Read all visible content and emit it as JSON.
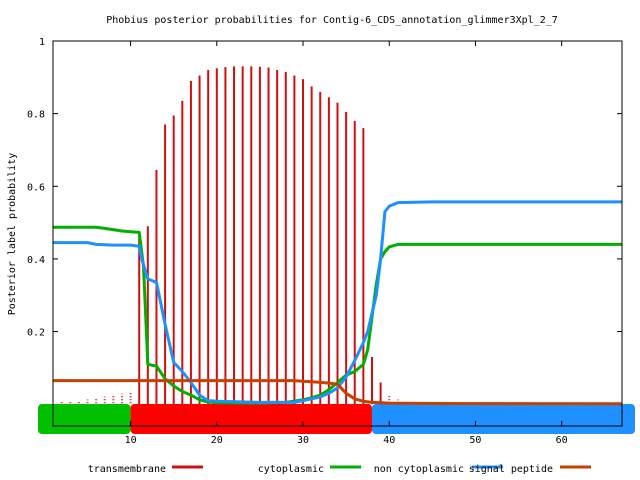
{
  "chart_data": {
    "type": "line",
    "title": "Phobius posterior probabilities for Contig-6_CDS_annotation_glimmer3Xpl_2_7",
    "xlabel": "",
    "ylabel": "Posterior label probability",
    "xlim": [
      1,
      67
    ],
    "ylim": [
      -0.06,
      1.0
    ],
    "x_ticks": [
      10,
      20,
      30,
      40,
      50,
      60
    ],
    "y_ticks": [
      0.2,
      0.4,
      0.6,
      0.8,
      1
    ],
    "y_tick_labels": [
      "0.2",
      "0.4",
      "0.6",
      "0.8",
      "1"
    ],
    "grid": false,
    "legend_position": "bottom",
    "topology_band": [
      {
        "label": "cytoplasmic",
        "from": 1,
        "to": 10,
        "color": "#00c000"
      },
      {
        "label": "transmembrane",
        "from": 10,
        "to": 38,
        "color": "#ff0000"
      },
      {
        "label": "non cytoplasmic",
        "from": 38,
        "to": 67,
        "color": "#1e90ff"
      }
    ],
    "series": [
      {
        "name": "transmembrane",
        "style": "impulses",
        "color": "#d01010",
        "x": [
          2,
          3,
          4,
          5,
          6,
          7,
          8,
          9,
          10,
          11,
          12,
          13,
          14,
          15,
          16,
          17,
          18,
          19,
          20,
          21,
          22,
          23,
          24,
          25,
          26,
          27,
          28,
          29,
          30,
          31,
          32,
          33,
          34,
          35,
          36,
          37,
          38,
          39,
          40,
          41
        ],
        "y": [
          0.005,
          0.006,
          0.008,
          0.01,
          0.014,
          0.018,
          0.022,
          0.026,
          0.03,
          0.47,
          0.49,
          0.645,
          0.77,
          0.795,
          0.835,
          0.89,
          0.905,
          0.92,
          0.925,
          0.928,
          0.93,
          0.93,
          0.93,
          0.929,
          0.927,
          0.92,
          0.915,
          0.905,
          0.895,
          0.875,
          0.86,
          0.845,
          0.83,
          0.805,
          0.78,
          0.76,
          0.13,
          0.06,
          0.02,
          0.01
        ]
      },
      {
        "name": "cytoplasmic",
        "style": "line",
        "color": "#00b000",
        "x": [
          1,
          6,
          7,
          9,
          10,
          11,
          11.5,
          12,
          13,
          14,
          15,
          16,
          17,
          18,
          19,
          20,
          25,
          28,
          30,
          31,
          32,
          33,
          34,
          35,
          36,
          37,
          37.5,
          38,
          38.5,
          39,
          39.5,
          40,
          41,
          45,
          67
        ],
        "y": [
          0.487,
          0.487,
          0.484,
          0.477,
          0.475,
          0.473,
          0.38,
          0.11,
          0.105,
          0.07,
          0.05,
          0.035,
          0.025,
          0.012,
          0.006,
          0.004,
          0.003,
          0.005,
          0.012,
          0.018,
          0.025,
          0.04,
          0.06,
          0.08,
          0.09,
          0.11,
          0.15,
          0.24,
          0.33,
          0.4,
          0.42,
          0.433,
          0.44,
          0.44,
          0.44
        ]
      },
      {
        "name": "non cytoplasmic",
        "style": "line",
        "color": "#1e90ff",
        "x": [
          1,
          5,
          6,
          8,
          10,
          11,
          11.3,
          12,
          13,
          14,
          15,
          16,
          17,
          18,
          19,
          20,
          25,
          29,
          30,
          31,
          32,
          33,
          34,
          35,
          36,
          37,
          37.5,
          38,
          38.5,
          39,
          39.5,
          40,
          41,
          45,
          67
        ],
        "y": [
          0.445,
          0.445,
          0.44,
          0.438,
          0.438,
          0.435,
          0.4,
          0.345,
          0.335,
          0.22,
          0.115,
          0.09,
          0.06,
          0.025,
          0.01,
          0.008,
          0.005,
          0.005,
          0.01,
          0.015,
          0.02,
          0.03,
          0.045,
          0.075,
          0.12,
          0.17,
          0.2,
          0.25,
          0.3,
          0.4,
          0.53,
          0.545,
          0.555,
          0.557,
          0.557
        ]
      },
      {
        "name": "signal peptide",
        "style": "line",
        "color": "#c84000",
        "x": [
          1,
          10,
          20,
          29,
          30,
          31,
          32,
          33,
          34,
          35,
          36,
          37,
          38,
          40,
          45,
          67
        ],
        "y": [
          0.065,
          0.065,
          0.065,
          0.065,
          0.063,
          0.062,
          0.06,
          0.058,
          0.055,
          0.03,
          0.015,
          0.008,
          0.005,
          0.003,
          0.002,
          0.001
        ]
      }
    ],
    "legend": [
      {
        "label": "transmembrane",
        "color": "#d01010"
      },
      {
        "label": "cytoplasmic",
        "color": "#00b000"
      },
      {
        "label": "non cytoplasmic",
        "color": "#1e90ff"
      },
      {
        "label": "signal peptide",
        "color": "#c84000"
      }
    ]
  }
}
